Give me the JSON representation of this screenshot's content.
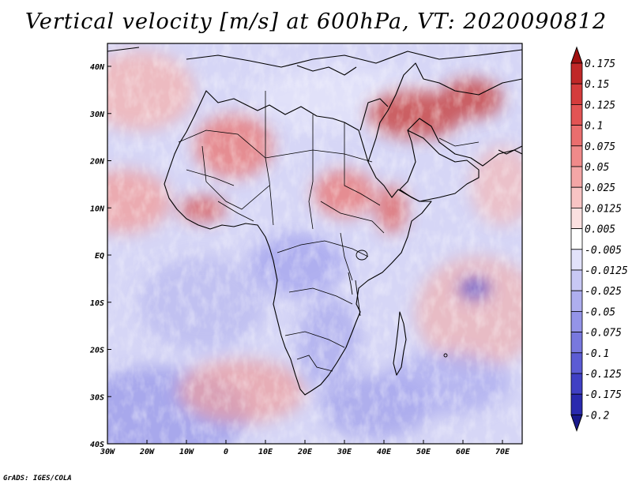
{
  "title": "Vertical velocity [m/s] at 600hPa, VT: 2020090812",
  "footer": "GrADS: IGES/COLA",
  "map": {
    "lon_range": [
      -30,
      75
    ],
    "lat_range": [
      -40,
      45
    ],
    "x_ticks": [
      "30W",
      "20W",
      "10W",
      "0",
      "10E",
      "20E",
      "30E",
      "40E",
      "50E",
      "60E",
      "70E"
    ],
    "y_ticks": [
      "40S",
      "30S",
      "20S",
      "10S",
      "EQ",
      "10N",
      "20N",
      "30N",
      "40N"
    ]
  },
  "colorbar": {
    "labels": [
      "0.175",
      "0.15",
      "0.125",
      "0.1",
      "0.075",
      "0.05",
      "0.025",
      "0.0125",
      "0.005",
      "-0.005",
      "-0.0125",
      "-0.025",
      "-0.05",
      "-0.075",
      "-0.1",
      "-0.125",
      "-0.175",
      "-0.2"
    ],
    "colors": [
      "#a01010",
      "#c02828",
      "#d43c3c",
      "#e25454",
      "#ea6e6e",
      "#f08a8a",
      "#f4a6a6",
      "#f8c4c4",
      "#fbe0e0",
      "#ffffff",
      "#e2e2fa",
      "#c8c8f4",
      "#aeaeee",
      "#9494e8",
      "#7878de",
      "#5c5cd4",
      "#4040c4",
      "#2a2aae",
      "#1a1a8c"
    ]
  }
}
